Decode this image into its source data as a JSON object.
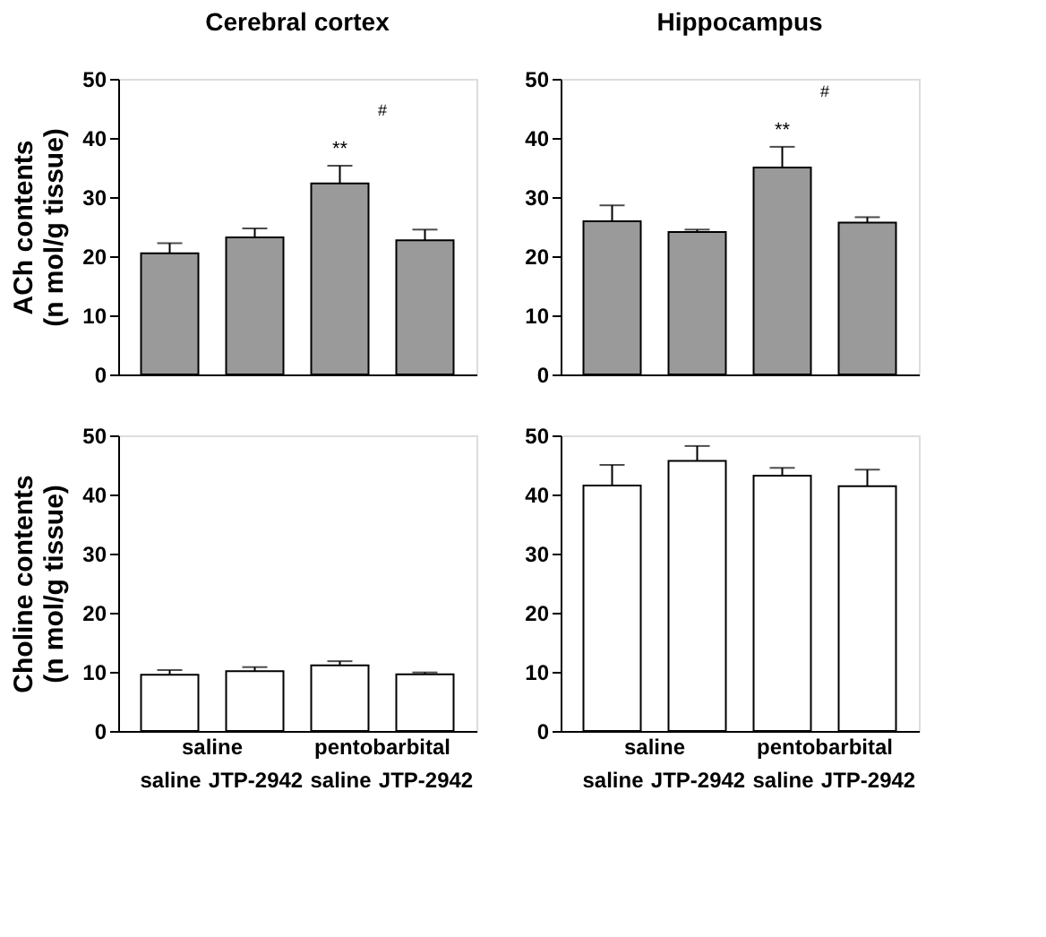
{
  "chart_data": [
    {
      "type": "bar",
      "title": "Cerebral cortex",
      "ylabel": "ACh contents\n(n mol/g tissue)",
      "categories": [
        null,
        null,
        null,
        null
      ],
      "values": [
        20.5,
        23.2,
        32.3,
        22.7
      ],
      "errors": [
        1.7,
        1.5,
        3.0,
        1.8
      ],
      "color": "#9a9a9a",
      "ylim": [
        0,
        50
      ],
      "yticks": [
        0,
        10,
        20,
        30,
        40,
        50
      ],
      "tick_labels": "y",
      "annotations": [
        "**",
        "#"
      ]
    },
    {
      "type": "bar",
      "title": "Hippocampus",
      "categories": [
        null,
        null,
        null,
        null
      ],
      "values": [
        25.9,
        24.1,
        35.0,
        25.7
      ],
      "errors": [
        2.7,
        0.4,
        3.5,
        0.9
      ],
      "color": "#9a9a9a",
      "ylim": [
        0,
        50
      ],
      "yticks": [
        0,
        10,
        20,
        30,
        40,
        50
      ],
      "tick_labels": "y",
      "annotations": [
        "**",
        "#"
      ]
    },
    {
      "type": "bar",
      "ylabel": "Choline contents\n(n mol/g tissue)",
      "categories": [
        "saline",
        "JTP-2942",
        "saline",
        "JTP-2942"
      ],
      "values": [
        9.5,
        10.1,
        11.1,
        9.6
      ],
      "errors": [
        0.8,
        0.7,
        0.7,
        0.3
      ],
      "color": "#ffffff",
      "ylim": [
        0,
        50
      ],
      "yticks": [
        0,
        10,
        20,
        30,
        40,
        50
      ],
      "annotations": [
        "saline",
        "pentobarbital"
      ]
    },
    {
      "type": "bar",
      "categories": [
        "saline",
        "JTP-2942",
        "saline",
        "JTP-2942"
      ],
      "values": [
        41.5,
        45.7,
        43.2,
        41.4
      ],
      "errors": [
        3.5,
        2.5,
        1.3,
        2.8
      ],
      "color": "#ffffff",
      "ylim": [
        0,
        50
      ],
      "yticks": [
        0,
        10,
        20,
        30,
        40,
        50
      ],
      "annotations": [
        "saline",
        "pentobarbital"
      ]
    }
  ]
}
